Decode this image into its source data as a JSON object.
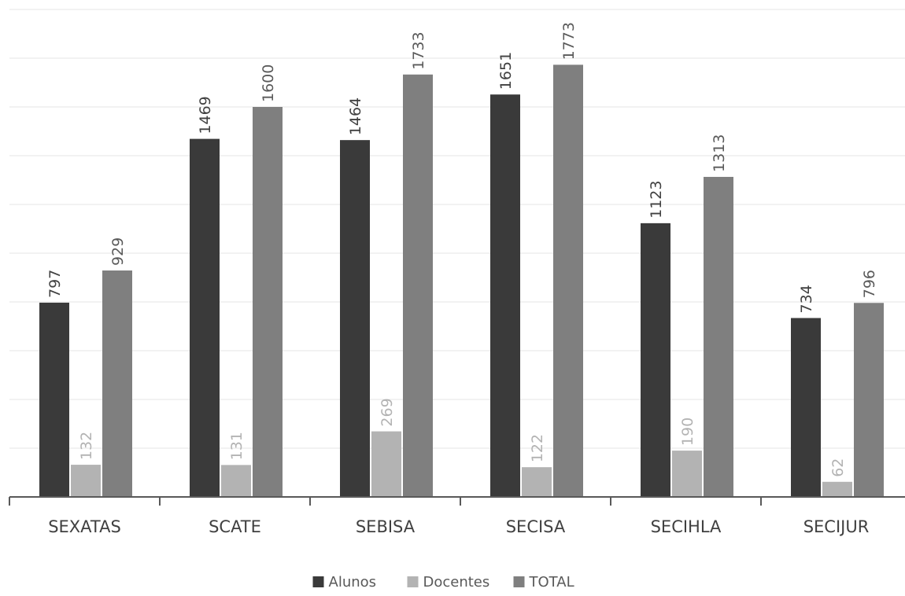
{
  "chart_data": {
    "type": "bar",
    "categories": [
      "SEXATAS",
      "SCATE",
      "SEBISA",
      "SECISA",
      "SECIHLA",
      "SECIJUR"
    ],
    "series": [
      {
        "name": "Alunos",
        "color": "#3a3a3a",
        "label_color": "#404040",
        "values": [
          797,
          1469,
          1464,
          1651,
          1123,
          734
        ]
      },
      {
        "name": "Docentes",
        "color": "#b3b3b3",
        "label_color": "#b3b3b3",
        "values": [
          132,
          131,
          269,
          122,
          190,
          62
        ]
      },
      {
        "name": "TOTAL",
        "color": "#7f7f7f",
        "label_color": "#595959",
        "values": [
          929,
          1600,
          1733,
          1773,
          1313,
          796
        ]
      }
    ],
    "ylim": [
      0,
      2000
    ],
    "grid": true,
    "legend": "bottom"
  }
}
